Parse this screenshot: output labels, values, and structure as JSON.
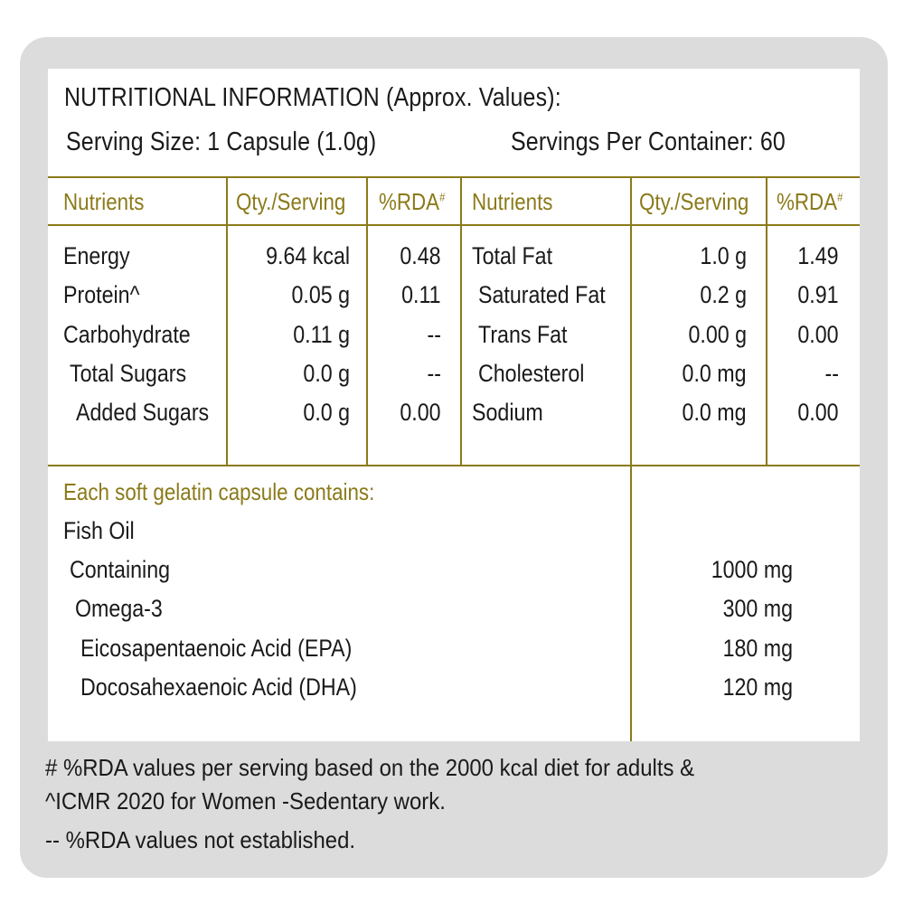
{
  "header": {
    "title": "NUTRITIONAL INFORMATION (Approx. Values):",
    "serving_size": "Serving Size: 1 Capsule (1.0g)",
    "servings_per_container": "Servings Per Container: 60"
  },
  "table": {
    "headers": {
      "nutrients": "Nutrients",
      "qty": "Qty./Serving",
      "rda": "%RDA",
      "rda_mark": "#"
    },
    "left_rows": [
      {
        "name": "Energy",
        "qty": "9.64 kcal",
        "rda": "0.48"
      },
      {
        "name": "Protein^",
        "qty": "0.05 g",
        "rda": "0.11"
      },
      {
        "name": "Carbohydrate",
        "qty": "0.11 g",
        "rda": "--"
      },
      {
        "name": "Total Sugars",
        "qty": "0.0 g",
        "rda": "--"
      },
      {
        "name": "Added Sugars",
        "qty": "0.0 g",
        "rda": "0.00"
      }
    ],
    "right_rows": [
      {
        "name": "Total Fat",
        "qty": "1.0 g",
        "rda": "1.49"
      },
      {
        "name": "Saturated Fat",
        "qty": "0.2 g",
        "rda": "0.91"
      },
      {
        "name": "Trans Fat",
        "qty": "0.00 g",
        "rda": "0.00"
      },
      {
        "name": "Cholesterol",
        "qty": "0.0 mg",
        "rda": "--"
      },
      {
        "name": "Sodium",
        "qty": "0.0 mg",
        "rda": "0.00"
      }
    ]
  },
  "capsule": {
    "heading": "Each soft gelatin capsule contains:",
    "items": [
      {
        "name": "Fish Oil",
        "amount": ""
      },
      {
        "name": "Containing",
        "amount": "1000 mg"
      },
      {
        "name": "Omega-3",
        "amount": "300 mg"
      },
      {
        "name": "Eicosapentaenoic Acid (EPA)",
        "amount": "180 mg"
      },
      {
        "name": "Docosahexaenoic Acid (DHA)",
        "amount": "120 mg"
      }
    ]
  },
  "footnotes": {
    "line1": "# %RDA values per serving based on the 2000 kcal diet for adults &",
    "line2": "^ICMR 2020 for Women -Sedentary work.",
    "line3": "-- %RDA values not established."
  },
  "colors": {
    "accent": "#8b7a1a",
    "frame": "#dcdcdc",
    "text": "#1a1a1a"
  }
}
